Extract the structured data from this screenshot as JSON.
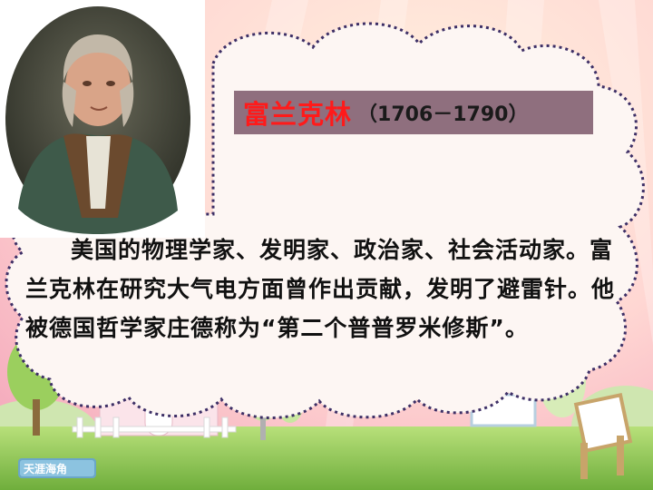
{
  "title": {
    "name": "富兰克林",
    "years": "（1706－1790）"
  },
  "description": "美国的物理学家、发明家、政治家、社会活动家。富兰克林在研究大气电方面曾作出贡献，发明了避雷针。他被德国哲学家庄德称为“第二个普普罗米修斯”。",
  "colors": {
    "title_box": "#8f6f7e",
    "title_name": "#ff1a1a",
    "cloud": "#fdf6f3",
    "cloud_border": "#3d2f66"
  }
}
